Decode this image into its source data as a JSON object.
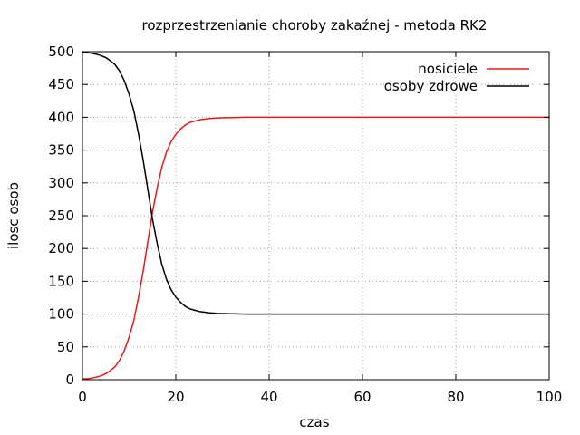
{
  "chart_data": {
    "type": "line",
    "title": "rozprzestrzenianie choroby zakaźnej - metoda RK2",
    "xlabel": "czas",
    "ylabel": "ilosc osob",
    "xlim": [
      0,
      100
    ],
    "ylim": [
      0,
      500
    ],
    "xticks": [
      0,
      20,
      40,
      60,
      80,
      100
    ],
    "yticks": [
      0,
      50,
      100,
      150,
      200,
      250,
      300,
      350,
      400,
      450,
      500
    ],
    "grid": true,
    "legend_position": "top-right",
    "series": [
      {
        "name": "nosiciele",
        "color": "#e41a1c",
        "x": [
          0,
          1,
          2,
          3,
          4,
          5,
          6,
          7,
          8,
          9,
          10,
          11,
          12,
          13,
          14,
          15,
          16,
          17,
          18,
          19,
          20,
          21,
          22,
          23,
          24,
          25,
          26,
          27,
          28,
          29,
          30,
          32,
          35,
          40,
          50,
          60,
          70,
          80,
          90,
          100
        ],
        "y": [
          1,
          1.6,
          2.5,
          4,
          6,
          9,
          14,
          20,
          30,
          45,
          65,
          90,
          125,
          165,
          210,
          255,
          292,
          324,
          347,
          363,
          374,
          382,
          388,
          392,
          394,
          396,
          397,
          398,
          398.5,
          399,
          399.2,
          399.5,
          400,
          400,
          400,
          400,
          400,
          400,
          400,
          400
        ]
      },
      {
        "name": "osoby zdrowe",
        "color": "#000000",
        "x": [
          0,
          1,
          2,
          3,
          4,
          5,
          6,
          7,
          8,
          9,
          10,
          11,
          12,
          13,
          14,
          15,
          16,
          17,
          18,
          19,
          20,
          21,
          22,
          23,
          24,
          25,
          26,
          27,
          28,
          29,
          30,
          32,
          35,
          40,
          50,
          60,
          70,
          80,
          90,
          100
        ],
        "y": [
          499,
          498.4,
          497.5,
          496,
          494,
          491,
          486,
          480,
          470,
          455,
          435,
          410,
          375,
          335,
          290,
          245,
          208,
          176,
          153,
          137,
          126,
          118,
          112,
          108,
          106,
          104,
          103,
          102,
          101.5,
          101,
          100.8,
          100.5,
          100,
          100,
          100,
          100,
          100,
          100,
          100,
          100
        ]
      }
    ]
  }
}
